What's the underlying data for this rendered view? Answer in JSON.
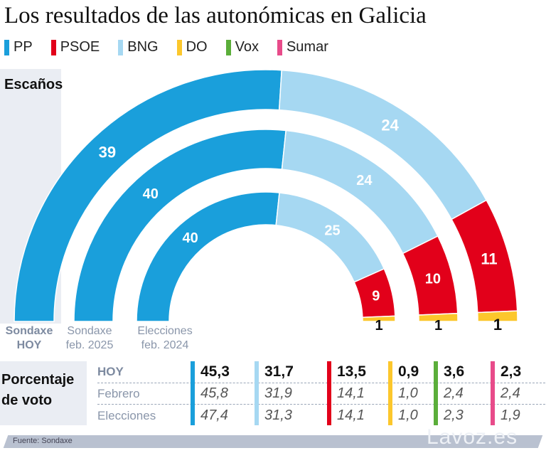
{
  "title": "Los resultados de las autonómicas en Galicia",
  "legend": [
    {
      "name": "PP",
      "color": "#1a9fdb"
    },
    {
      "name": "PSOE",
      "color": "#e2001a"
    },
    {
      "name": "BNG",
      "color": "#a6d8f2"
    },
    {
      "name": "DO",
      "color": "#fcc72c"
    },
    {
      "name": "Vox",
      "color": "#5bae3a"
    },
    {
      "name": "Sumar",
      "color": "#e84b8a"
    }
  ],
  "chart_data": {
    "type": "parliament-semicircle",
    "title": "Escaños",
    "party_order": [
      "PP",
      "BNG",
      "PSOE",
      "DO"
    ],
    "colors": {
      "PP": "#1a9fdb",
      "BNG": "#a6d8f2",
      "PSOE": "#e2001a",
      "DO": "#fcc72c"
    },
    "rings": [
      {
        "label_line1": "Sondaxe",
        "label_line2": "HOY",
        "seats": {
          "PP": 39,
          "BNG": 24,
          "PSOE": 11,
          "DO": 1
        }
      },
      {
        "label_line1": "Sondaxe",
        "label_line2": "feb. 2025",
        "seats": {
          "PP": 40,
          "BNG": 24,
          "PSOE": 10,
          "DO": 1
        }
      },
      {
        "label_line1": "Elecciones",
        "label_line2": "feb. 2024",
        "seats": {
          "PP": 40,
          "BNG": 25,
          "PSOE": 9,
          "DO": 1
        }
      }
    ]
  },
  "vote": {
    "label_line1": "Porcentaje",
    "label_line2": "de voto",
    "rows": [
      "HOY",
      "Febrero",
      "Elecciones"
    ],
    "columns": [
      {
        "party": "PP",
        "color": "#1a9fdb",
        "values": [
          "45,3",
          "45,8",
          "47,4"
        ]
      },
      {
        "party": "BNG",
        "color": "#a6d8f2",
        "values": [
          "31,7",
          "31,9",
          "31,3"
        ]
      },
      {
        "party": "PSOE",
        "color": "#e2001a",
        "values": [
          "13,5",
          "14,1",
          "14,1"
        ]
      },
      {
        "party": "DO",
        "color": "#fcc72c",
        "values": [
          "0,9",
          "1,0",
          "1,0"
        ]
      },
      {
        "party": "Vox",
        "color": "#5bae3a",
        "values": [
          "3,6",
          "2,4",
          "2,3"
        ]
      },
      {
        "party": "Sumar",
        "color": "#e84b8a",
        "values": [
          "2,3",
          "2,4",
          "1,9"
        ]
      }
    ]
  },
  "footer": {
    "source": "Fuente:  Sondaxe",
    "brand": "Lavoz.es"
  }
}
